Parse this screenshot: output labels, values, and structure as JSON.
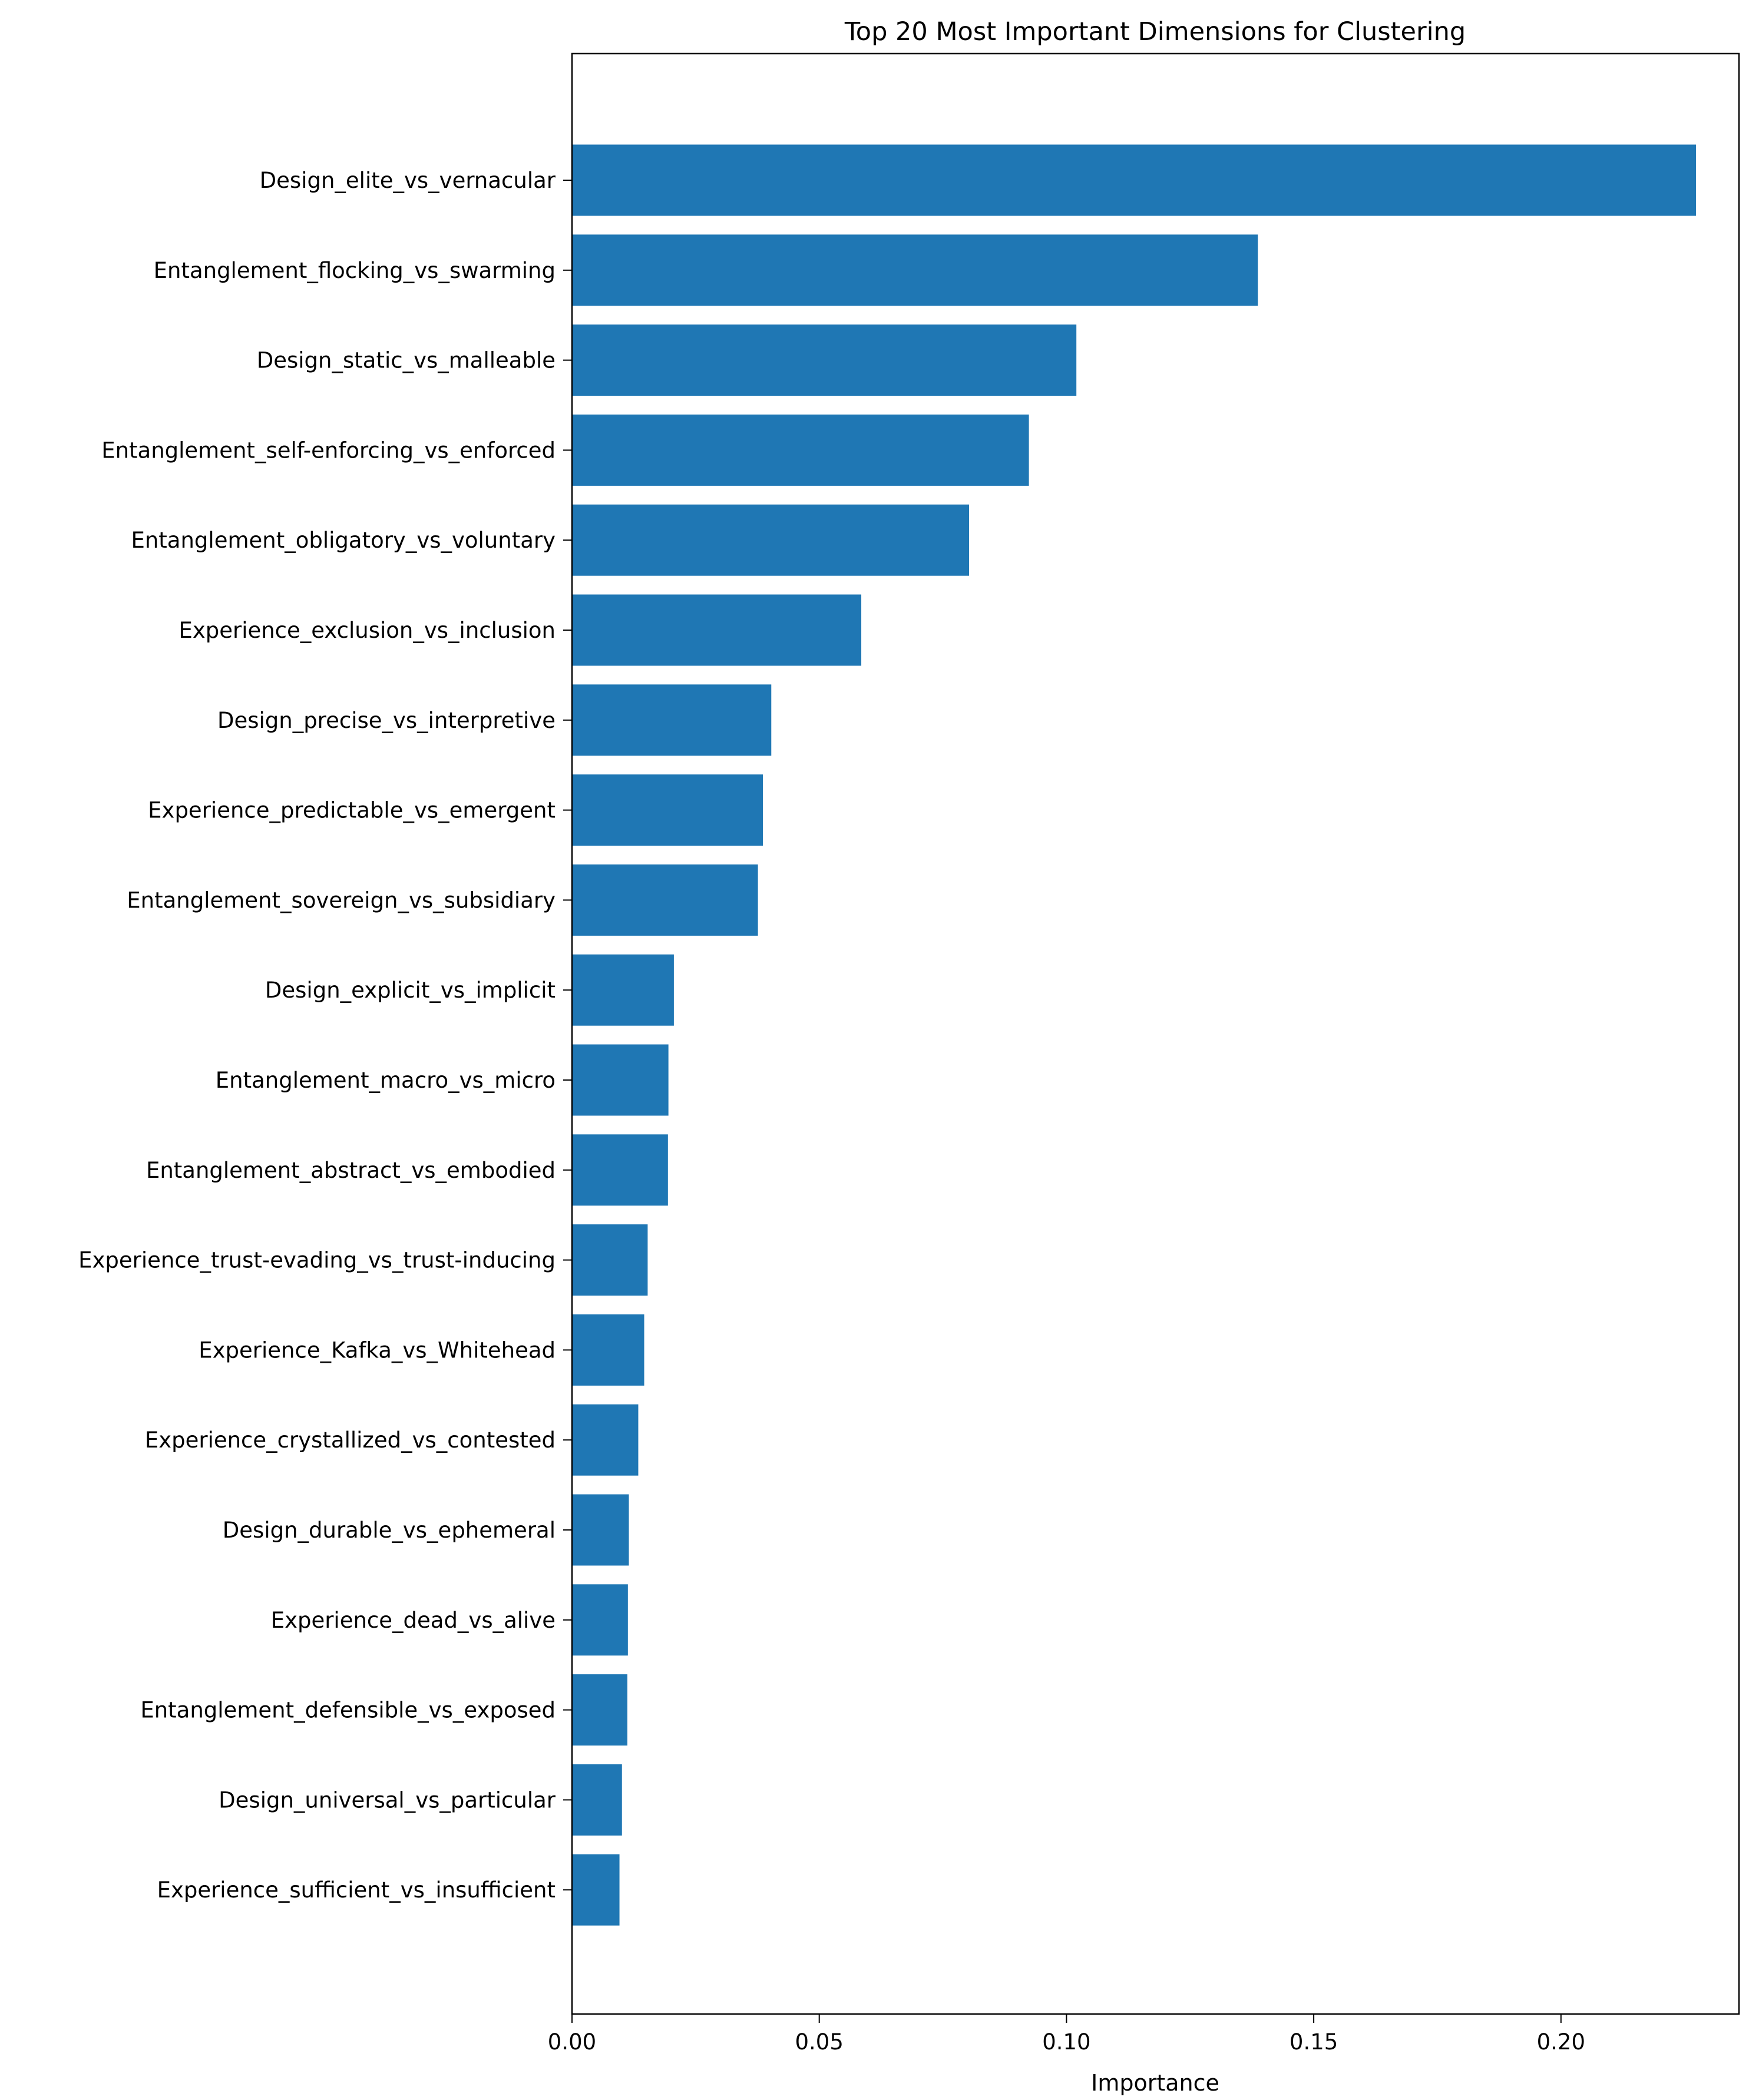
{
  "chart_data": {
    "type": "bar",
    "orientation": "horizontal",
    "title": "Top 20 Most Important Dimensions for Clustering",
    "xlabel": "Importance",
    "ylabel": "",
    "xlim": [
      0,
      0.236
    ],
    "xticks": [
      "0.00",
      "0.05",
      "0.10",
      "0.15",
      "0.20"
    ],
    "grid": false,
    "bar_color": "#1f77b4",
    "categories": [
      "Design_elite_vs_vernacular",
      "Entanglement_flocking_vs_swarming",
      "Design_static_vs_malleable",
      "Entanglement_self-enforcing_vs_enforced",
      "Entanglement_obligatory_vs_voluntary",
      "Experience_exclusion_vs_inclusion",
      "Design_precise_vs_interpretive",
      "Experience_predictable_vs_emergent",
      "Entanglement_sovereign_vs_subsidiary",
      "Design_explicit_vs_implicit",
      "Entanglement_macro_vs_micro",
      "Entanglement_abstract_vs_embodied",
      "Experience_trust-evading_vs_trust-inducing",
      "Experience_Kafka_vs_Whitehead",
      "Experience_crystallized_vs_contested",
      "Design_durable_vs_ephemeral",
      "Experience_dead_vs_alive",
      "Entanglement_defensible_vs_exposed",
      "Design_universal_vs_particular",
      "Experience_sufficient_vs_insufficient"
    ],
    "values": [
      0.2273,
      0.1387,
      0.102,
      0.0924,
      0.0803,
      0.0585,
      0.0403,
      0.0386,
      0.0376,
      0.0206,
      0.0195,
      0.0194,
      0.0153,
      0.0146,
      0.0134,
      0.0115,
      0.0113,
      0.0112,
      0.0101,
      0.0096
    ]
  }
}
